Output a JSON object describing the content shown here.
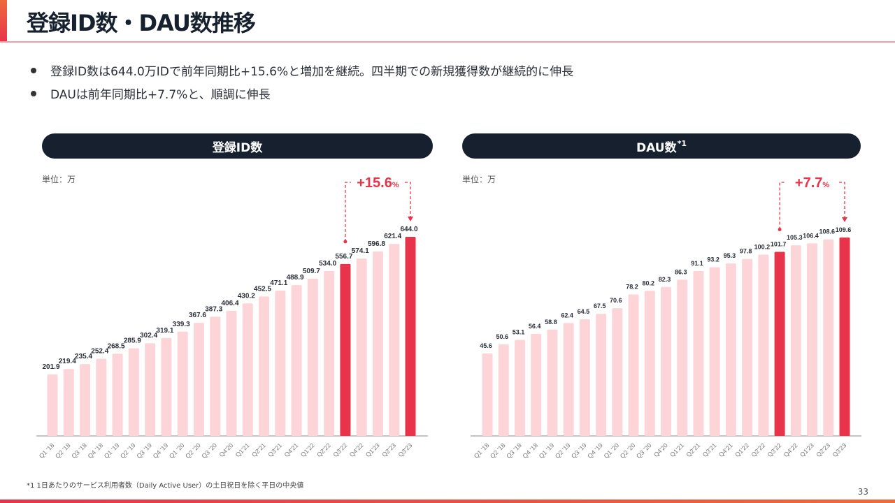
{
  "header": {
    "title": "登録ID数・DAU数推移"
  },
  "bullets": [
    "登録ID数は644.0万IDで前年同期比+15.6%と増加を継続。四半期での新規獲得数が継続的に伸長",
    "DAUは前年同期比+7.7%と、順調に伸長"
  ],
  "colors": {
    "bar_normal": "#fdd5d9",
    "bar_highlight": "#e8344a",
    "accent": "#e8344a",
    "pill": "#16202e"
  },
  "chart_data": [
    {
      "type": "bar",
      "title": "登録ID数",
      "unit_label": "単位：万",
      "xlabel": "",
      "ylabel": "",
      "categories": [
        "Q1 '18",
        "Q2 '18",
        "Q3 '18",
        "Q4 '18",
        "Q1 '19",
        "Q2 '19",
        "Q3 '19",
        "Q4 '19",
        "Q1 '20",
        "Q2 '20",
        "Q3 '20",
        "Q4'20",
        "Q1'21",
        "Q2'21",
        "Q3'21",
        "Q4'21",
        "Q1'22",
        "Q2'22",
        "Q3'22",
        "Q4'22",
        "Q1'23",
        "Q2'23",
        "Q3'23"
      ],
      "values": [
        201.9,
        219.4,
        235.4,
        252.4,
        268.5,
        285.9,
        302.4,
        319.1,
        339.3,
        367.6,
        387.3,
        406.4,
        430.2,
        452.5,
        471.1,
        488.9,
        509.7,
        534.0,
        556.7,
        574.1,
        596.8,
        621.4,
        644.0
      ],
      "labels": [
        "201.9",
        "219.4",
        "235.4",
        "252.4",
        "268.5",
        "285.9",
        "302.4",
        "319.1",
        "339.3",
        "367.6",
        "387.3",
        "406.4",
        "430.2",
        "452.5",
        "471.1",
        "488.9",
        "509.7",
        "534.0",
        "556.7",
        "574.1",
        "596.8",
        "621.4",
        "644.0"
      ],
      "highlight": [
        "Q3'22",
        "Q3'23"
      ],
      "ylim": [
        0,
        700
      ],
      "grid": false,
      "annotation": {
        "value": "+15.6",
        "suffix": "%",
        "from": "Q3'22",
        "to": "Q3'23"
      }
    },
    {
      "type": "bar",
      "title": "DAU数",
      "title_sup": "*1",
      "unit_label": "単位：万",
      "xlabel": "",
      "ylabel": "",
      "categories": [
        "Q1 '18",
        "Q2 '18",
        "Q3 '18",
        "Q4 '18",
        "Q1 '19",
        "Q2 '19",
        "Q3 '19",
        "Q4 '19",
        "Q1 '20",
        "Q2 '20",
        "Q3 '20",
        "Q4'20",
        "Q1'21",
        "Q2'21",
        "Q3'21",
        "Q4'21",
        "Q1'22",
        "Q2'22",
        "Q3'22",
        "Q4'22",
        "Q1'23",
        "Q2'23",
        "Q3'23"
      ],
      "values": [
        45.6,
        50.6,
        53.1,
        56.4,
        58.8,
        62.4,
        64.5,
        67.5,
        70.6,
        78.2,
        80.2,
        82.3,
        86.3,
        91.1,
        93.2,
        95.3,
        97.8,
        100.2,
        101.7,
        105.3,
        106.4,
        108.6,
        109.6
      ],
      "labels": [
        "45.6",
        "50.6",
        "53.1",
        "56.4",
        "58.8",
        "62.4",
        "64.5",
        "67.5",
        "70.6",
        "78.2",
        "80.2",
        "82.3",
        "86.3",
        "91.1",
        "93.2",
        "95.3",
        "97.8",
        "100.2",
        "101.7",
        "105.3",
        "106.4",
        "108.6",
        "109.6"
      ],
      "highlight": [
        "Q3'22",
        "Q3'23"
      ],
      "ylim": [
        0,
        125
      ],
      "grid": false,
      "annotation": {
        "value": "+7.7",
        "suffix": "%",
        "from": "Q3'22",
        "to": "Q3'23"
      }
    }
  ],
  "footnote": "*1 1日あたりのサービス利用者数（Daily Active User）の土日祝日を除く平日の中央値",
  "page_number": "33"
}
